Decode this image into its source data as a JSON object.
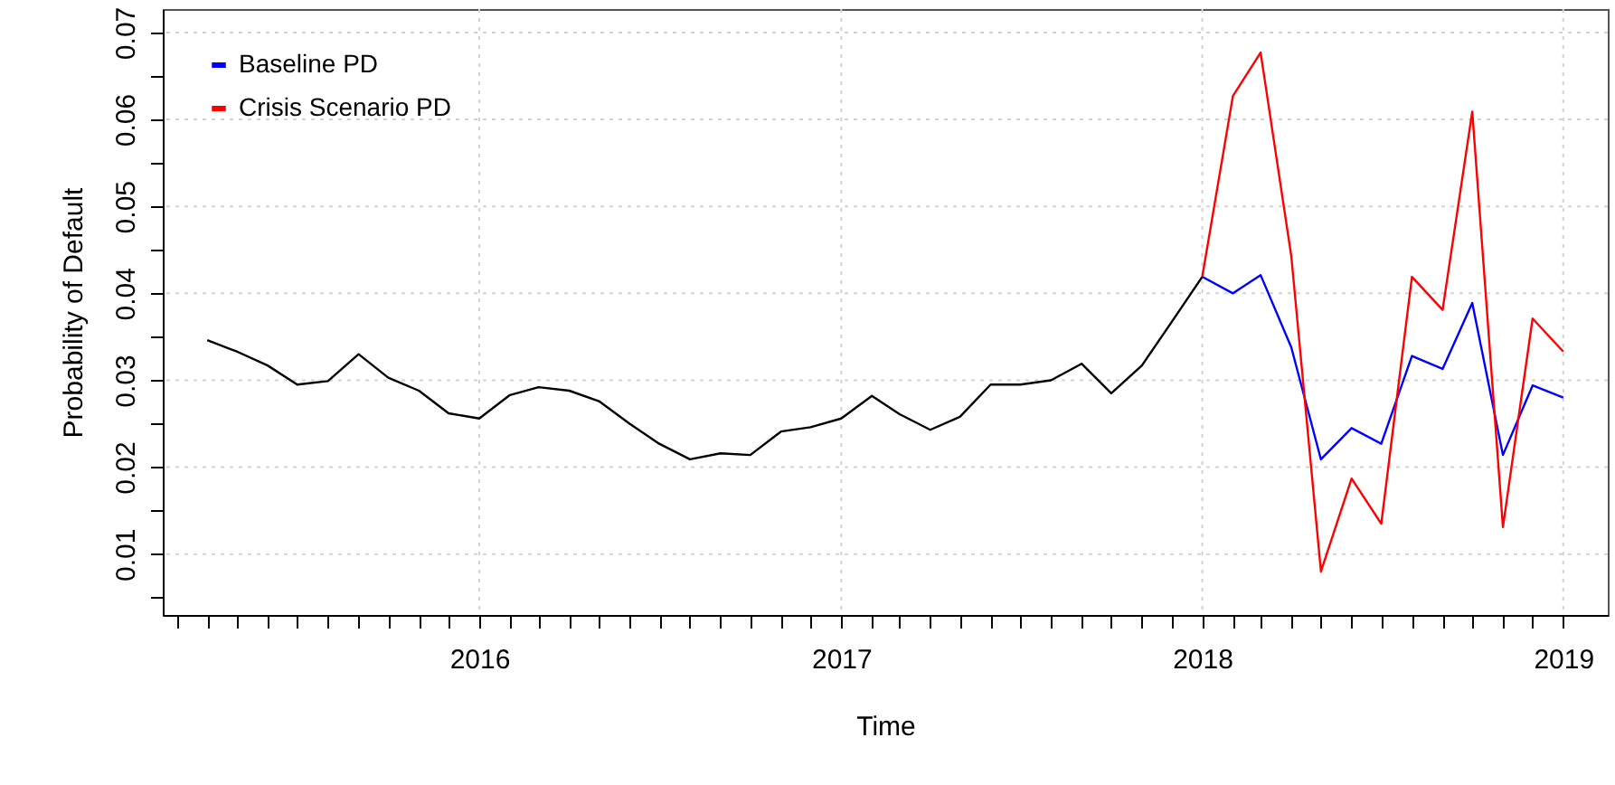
{
  "chart_data": {
    "type": "line",
    "xlabel": "Time",
    "ylabel": "Probability of Default",
    "legend": "top left",
    "grid": true,
    "marker": "none",
    "line_style": "solid",
    "xlim": [
      "2015-02-15",
      "2019-02-15"
    ],
    "ylim": [
      0.003,
      0.0727
    ],
    "xticks": [
      {
        "value": "2015-03",
        "label": null
      },
      {
        "value": "2015-04",
        "label": null
      },
      {
        "value": "2015-05",
        "label": null
      },
      {
        "value": "2015-06",
        "label": null
      },
      {
        "value": "2015-07",
        "label": null
      },
      {
        "value": "2015-08",
        "label": null
      },
      {
        "value": "2015-09",
        "label": null
      },
      {
        "value": "2015-10",
        "label": null
      },
      {
        "value": "2015-11",
        "label": null
      },
      {
        "value": "2015-12",
        "label": null
      },
      {
        "value": "2016-01",
        "label": "2016"
      },
      {
        "value": "2016-02",
        "label": null
      },
      {
        "value": "2016-03",
        "label": null
      },
      {
        "value": "2016-04",
        "label": null
      },
      {
        "value": "2016-05",
        "label": null
      },
      {
        "value": "2016-06",
        "label": null
      },
      {
        "value": "2016-07",
        "label": null
      },
      {
        "value": "2016-08",
        "label": null
      },
      {
        "value": "2016-09",
        "label": null
      },
      {
        "value": "2016-10",
        "label": null
      },
      {
        "value": "2016-11",
        "label": null
      },
      {
        "value": "2016-12",
        "label": null
      },
      {
        "value": "2017-01",
        "label": "2017"
      },
      {
        "value": "2017-02",
        "label": null
      },
      {
        "value": "2017-03",
        "label": null
      },
      {
        "value": "2017-04",
        "label": null
      },
      {
        "value": "2017-05",
        "label": null
      },
      {
        "value": "2017-06",
        "label": null
      },
      {
        "value": "2017-07",
        "label": null
      },
      {
        "value": "2017-08",
        "label": null
      },
      {
        "value": "2017-09",
        "label": null
      },
      {
        "value": "2017-10",
        "label": null
      },
      {
        "value": "2017-11",
        "label": null
      },
      {
        "value": "2017-12",
        "label": null
      },
      {
        "value": "2018-01",
        "label": "2018"
      },
      {
        "value": "2018-02",
        "label": null
      },
      {
        "value": "2018-03",
        "label": null
      },
      {
        "value": "2018-04",
        "label": null
      },
      {
        "value": "2018-05",
        "label": null
      },
      {
        "value": "2018-06",
        "label": null
      },
      {
        "value": "2018-07",
        "label": null
      },
      {
        "value": "2018-08",
        "label": null
      },
      {
        "value": "2018-09",
        "label": null
      },
      {
        "value": "2018-10",
        "label": null
      },
      {
        "value": "2018-11",
        "label": null
      },
      {
        "value": "2018-12",
        "label": null
      },
      {
        "value": "2019-01",
        "label": "2019"
      }
    ],
    "yticks": [
      {
        "value": 0.005,
        "label": null
      },
      0.01,
      {
        "value": 0.015,
        "label": null
      },
      0.02,
      {
        "value": 0.025,
        "label": null
      },
      0.03,
      {
        "value": 0.035,
        "label": null
      },
      0.04,
      {
        "value": 0.045,
        "label": null
      },
      0.05,
      {
        "value": 0.055,
        "label": null
      },
      0.06,
      {
        "value": 0.065,
        "label": null
      },
      0.07
    ],
    "series": [
      {
        "color": "#000000",
        "x": [
          "2015-04",
          "2015-05",
          "2015-06",
          "2015-07",
          "2015-08",
          "2015-09",
          "2015-10",
          "2015-11",
          "2015-12",
          "2016-01",
          "2016-02",
          "2016-03",
          "2016-04",
          "2016-05",
          "2016-06",
          "2016-07",
          "2016-08",
          "2016-09",
          "2016-10",
          "2016-11",
          "2016-12",
          "2017-01",
          "2017-02",
          "2017-03",
          "2017-04",
          "2017-05",
          "2017-06",
          "2017-07",
          "2017-08",
          "2017-09",
          "2017-10",
          "2017-11",
          "2017-12",
          "2018-01"
        ],
        "values": [
          0.0346,
          0.0333,
          0.0317,
          0.0295,
          0.0299,
          0.033,
          0.0303,
          0.0288,
          0.0262,
          0.0256,
          0.0283,
          0.0292,
          0.0288,
          0.0276,
          0.025,
          0.0227,
          0.0209,
          0.0216,
          0.0214,
          0.0241,
          0.0246,
          0.0256,
          0.0282,
          0.0261,
          0.0243,
          0.0258,
          0.0295,
          0.0295,
          0.03,
          0.0319,
          0.0285,
          0.0317,
          0.0367,
          0.0419
        ]
      },
      {
        "name": "Baseline PD",
        "color": "#0000ff",
        "x": [
          "2018-01",
          "2018-02",
          "2018-03",
          "2018-04",
          "2018-05",
          "2018-06",
          "2018-07",
          "2018-08",
          "2018-09",
          "2018-10",
          "2018-11",
          "2018-12",
          "2019-01"
        ],
        "values": [
          0.0419,
          0.04,
          0.0421,
          0.0338,
          0.0209,
          0.0245,
          0.0227,
          0.0328,
          0.0313,
          0.0389,
          0.0214,
          0.0294,
          0.028
        ]
      },
      {
        "name": "Crisis Scenario PD",
        "color": "#ff0000",
        "x": [
          "2018-01",
          "2018-02",
          "2018-03",
          "2018-04",
          "2018-05",
          "2018-06",
          "2018-07",
          "2018-08",
          "2018-09",
          "2018-10",
          "2018-11",
          "2018-12",
          "2019-01"
        ],
        "values": [
          0.0419,
          0.0627,
          0.0677,
          0.0443,
          0.008,
          0.0187,
          0.0135,
          0.0419,
          0.0381,
          0.0609,
          0.0131,
          0.0371,
          0.0333
        ]
      }
    ]
  }
}
